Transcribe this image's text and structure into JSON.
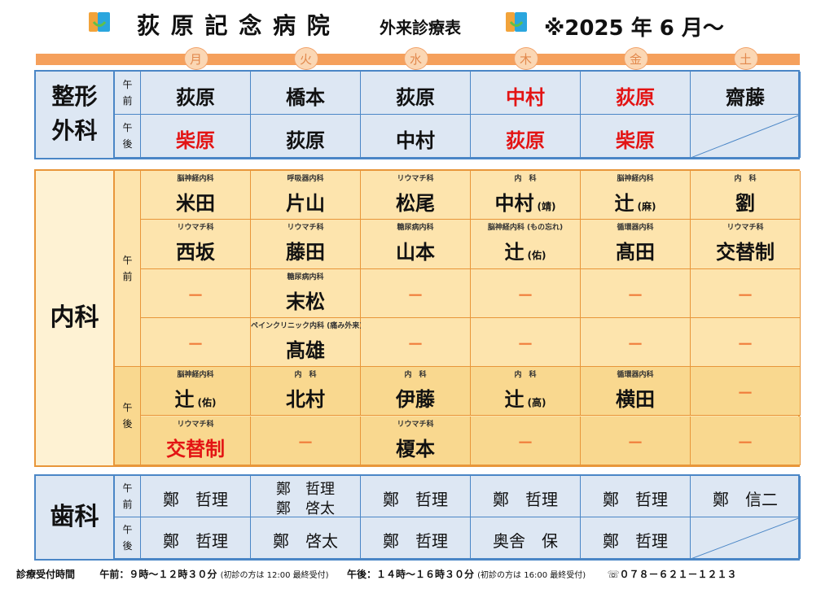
{
  "header": {
    "hospital_name": "荻 原 記 念 病 院",
    "subtitle": "外来診療表",
    "date_note": "※2025 年 6 月～"
  },
  "days": [
    "月",
    "火",
    "水",
    "木",
    "金",
    "土"
  ],
  "colors": {
    "orange_bar": "#f5a05c",
    "blue_border": "#4a86c6",
    "blue_cell": "#dde7f3",
    "orange_border": "#e8963a",
    "light_orange": "#fde4ad",
    "dark_orange": "#f9d88f",
    "red": "#e31414"
  },
  "sessions": {
    "am": "午\n前",
    "pm": "午\n後"
  },
  "orthopedics": {
    "label": "整形\n外科",
    "am": [
      {
        "name": "荻原",
        "red": false
      },
      {
        "name": "橋本",
        "red": false
      },
      {
        "name": "荻原",
        "red": false
      },
      {
        "name": "中村",
        "red": true
      },
      {
        "name": "荻原",
        "red": true
      },
      {
        "name": "齋藤",
        "red": false
      }
    ],
    "pm": [
      {
        "name": "柴原",
        "red": true
      },
      {
        "name": "荻原",
        "red": false
      },
      {
        "name": "中村",
        "red": false
      },
      {
        "name": "荻原",
        "red": true
      },
      {
        "name": "柴原",
        "red": true
      },
      null
    ]
  },
  "internal": {
    "label": "内科",
    "am": [
      [
        {
          "sub": "脳神経内科",
          "name": "米田"
        },
        {
          "sub": "呼吸器内科",
          "name": "片山"
        },
        {
          "sub": "リウマチ科",
          "name": "松尾"
        },
        {
          "sub": "内　科",
          "name": "中村",
          "suffix": "(靖)"
        },
        {
          "sub": "脳神経内科",
          "name": "辻",
          "suffix": "(麻)"
        },
        {
          "sub": "内　科",
          "name": "劉"
        }
      ],
      [
        {
          "sub": "リウマチ科",
          "name": "西坂"
        },
        {
          "sub": "リウマチ科",
          "name": "藤田"
        },
        {
          "sub": "糖尿病内科",
          "name": "山本"
        },
        {
          "sub": "脳神経内科 (もの忘れ)",
          "name": "辻",
          "suffix": "(佑)"
        },
        {
          "sub": "循環器内科",
          "name": "髙田"
        },
        {
          "sub": "リウマチ科",
          "name": "交替制"
        }
      ],
      [
        {
          "dash": "－"
        },
        {
          "sub": "糖尿病内科",
          "name": "末松"
        },
        {
          "dash": "－"
        },
        {
          "dash": "－"
        },
        {
          "dash": "－"
        },
        {
          "dash": "－"
        }
      ],
      [
        {
          "dash": "－"
        },
        {
          "sub": "ペインクリニック内科 (痛み外来)",
          "name": "髙雄"
        },
        {
          "dash": "－"
        },
        {
          "dash": "－"
        },
        {
          "dash": "－"
        },
        {
          "dash": "－"
        }
      ]
    ],
    "pm": [
      [
        {
          "sub": "脳神経内科",
          "name": "辻",
          "suffix": "(佑)"
        },
        {
          "sub": "内　科",
          "name": "北村"
        },
        {
          "sub": "内　科",
          "name": "伊藤"
        },
        {
          "sub": "内　科",
          "name": "辻",
          "suffix": "(高)"
        },
        {
          "sub": "循環器内科",
          "name": "横田"
        },
        {
          "dash": "－"
        }
      ],
      [
        {
          "sub": "リウマチ科",
          "name": "交替制",
          "red": true
        },
        {
          "dash": "－"
        },
        {
          "sub": "リウマチ科",
          "name": "榎本"
        },
        {
          "dash": "－"
        },
        {
          "dash": "－"
        },
        {
          "dash": "－"
        }
      ]
    ]
  },
  "dental": {
    "label": "歯科",
    "am": [
      {
        "lines": [
          "鄭　哲理"
        ]
      },
      {
        "lines": [
          "鄭　哲理",
          "鄭　啓太"
        ]
      },
      {
        "lines": [
          "鄭　哲理"
        ]
      },
      {
        "lines": [
          "鄭　哲理"
        ]
      },
      {
        "lines": [
          "鄭　哲理"
        ]
      },
      {
        "lines": [
          "鄭　信二"
        ]
      }
    ],
    "pm": [
      {
        "lines": [
          "鄭　哲理"
        ]
      },
      {
        "lines": [
          "鄭　啓太"
        ]
      },
      {
        "lines": [
          "鄭　哲理"
        ]
      },
      {
        "lines": [
          "奥舎　保"
        ]
      },
      {
        "lines": [
          "鄭　哲理"
        ]
      },
      null
    ]
  },
  "footer": {
    "reception_label": "診療受付時間",
    "am_hours": "午前：９時～１２時３０分",
    "am_note": "(初診の方は 12:00 最終受付)",
    "pm_hours": "午後：１４時～１６時３０分",
    "pm_note": "(初診の方は 16:00 最終受付)",
    "phone": "☏０７８－６２１－１２１３"
  }
}
